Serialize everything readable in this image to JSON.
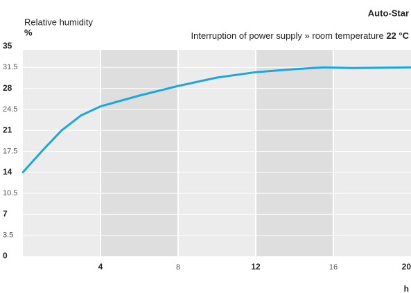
{
  "chart_data": {
    "type": "line",
    "title": "Auto-Star",
    "subtitle": "Interruption of power supply » room temperature",
    "subtitle_value": "22 °C",
    "y_label": "Relative humidity",
    "y_unit": "%",
    "x_unit": "h",
    "x": [
      0,
      1,
      2,
      3,
      4,
      6,
      8,
      10,
      12,
      14,
      15.5,
      17,
      20
    ],
    "series": [
      {
        "name": "Relative humidity",
        "color": "#1aa7e1",
        "values": [
          14,
          17.6,
          21,
          23.5,
          25,
          26.8,
          28.4,
          29.8,
          30.7,
          31.2,
          31.5,
          31.4,
          31.5
        ]
      }
    ],
    "xlim": [
      0,
      20
    ],
    "xticks": [
      4,
      8,
      12,
      16,
      20
    ],
    "ylim": [
      0,
      35
    ],
    "yticks": [
      0,
      3.5,
      7,
      10.5,
      14,
      17.5,
      21,
      24.5,
      28,
      31.5,
      35
    ],
    "grid": true
  }
}
